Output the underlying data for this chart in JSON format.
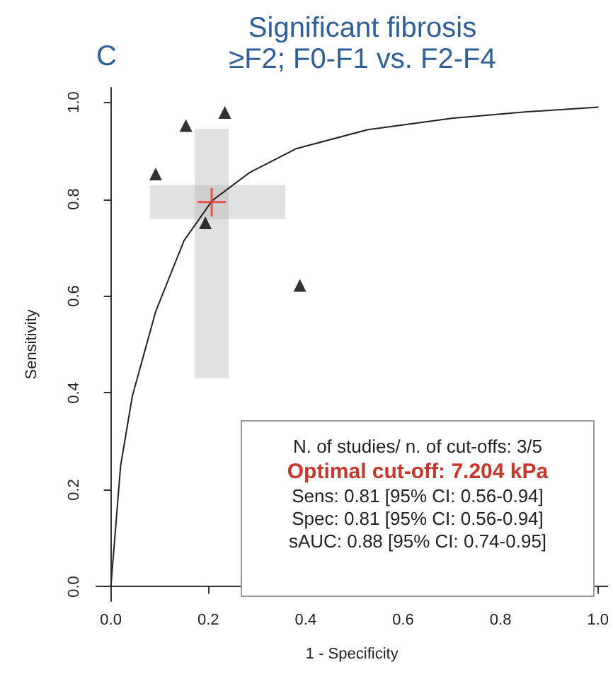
{
  "chart_data": {
    "type": "scatter",
    "title": "Significant fibrosis\n≥F2; F0-F1 vs. F2-F4",
    "xlabel": "1 - Specificity",
    "ylabel": "Sensitivity",
    "annotations": [
      "C",
      "N. of studies/ n. of cut-offs: 3/5",
      "Optimal cut-off: 7.204 kPa",
      "Sens: 0.81 [95% CI: 0.56-0.94]",
      "Spec: 0.81 [95% CI: 0.56-0.94]",
      "sAUC: 0.88 [95% CI: 0.74-0.95]"
    ],
    "xlim": [
      -0.03,
      1.02
    ],
    "ylim": [
      -0.03,
      1.03
    ],
    "xticks": [
      {
        "value": 0,
        "label": "0.0"
      },
      {
        "value": 0.2,
        "label": "0.2"
      },
      {
        "value": 0.4,
        "label": "0.4"
      },
      {
        "value": 0.6,
        "label": "0.6"
      },
      {
        "value": 0.8,
        "label": "0.8"
      },
      {
        "value": 1,
        "label": "1.0"
      }
    ],
    "yticks": [
      {
        "value": 0,
        "label": "0.0"
      },
      {
        "value": 0.2,
        "label": "0.2"
      },
      {
        "value": 0.4,
        "label": "0.4"
      },
      {
        "value": 0.6,
        "label": "0.6"
      },
      {
        "value": 0.8,
        "label": "0.8"
      },
      {
        "value": 1,
        "label": "1.0"
      }
    ],
    "series": [
      {
        "type": "line",
        "color": "#222222",
        "marker": "none",
        "x": [
          0,
          0.02,
          0.044,
          0.092,
          0.15,
          0.208,
          0.285,
          0.38,
          0.526,
          0.7,
          0.85,
          1
        ],
        "values": [
          0,
          0.25,
          0.393,
          0.568,
          0.714,
          0.797,
          0.855,
          0.904,
          0.943,
          0.967,
          0.98,
          0.99
        ]
      },
      {
        "color": "#000000",
        "marker": "triangle",
        "x": [
          0.092,
          0.154,
          0.234,
          0.194,
          0.388
        ],
        "values": [
          0.852,
          0.952,
          0.979,
          0.751,
          0.622
        ]
      },
      {
        "color": "#e8402a",
        "marker": "cross",
        "x": [
          0.207
        ],
        "values": [
          0.794
        ],
        "errors": [
          [
            0.43,
            0.945
          ]
        ],
        "xerrors": [
          [
            0.08,
            0.358
          ]
        ]
      }
    ]
  }
}
